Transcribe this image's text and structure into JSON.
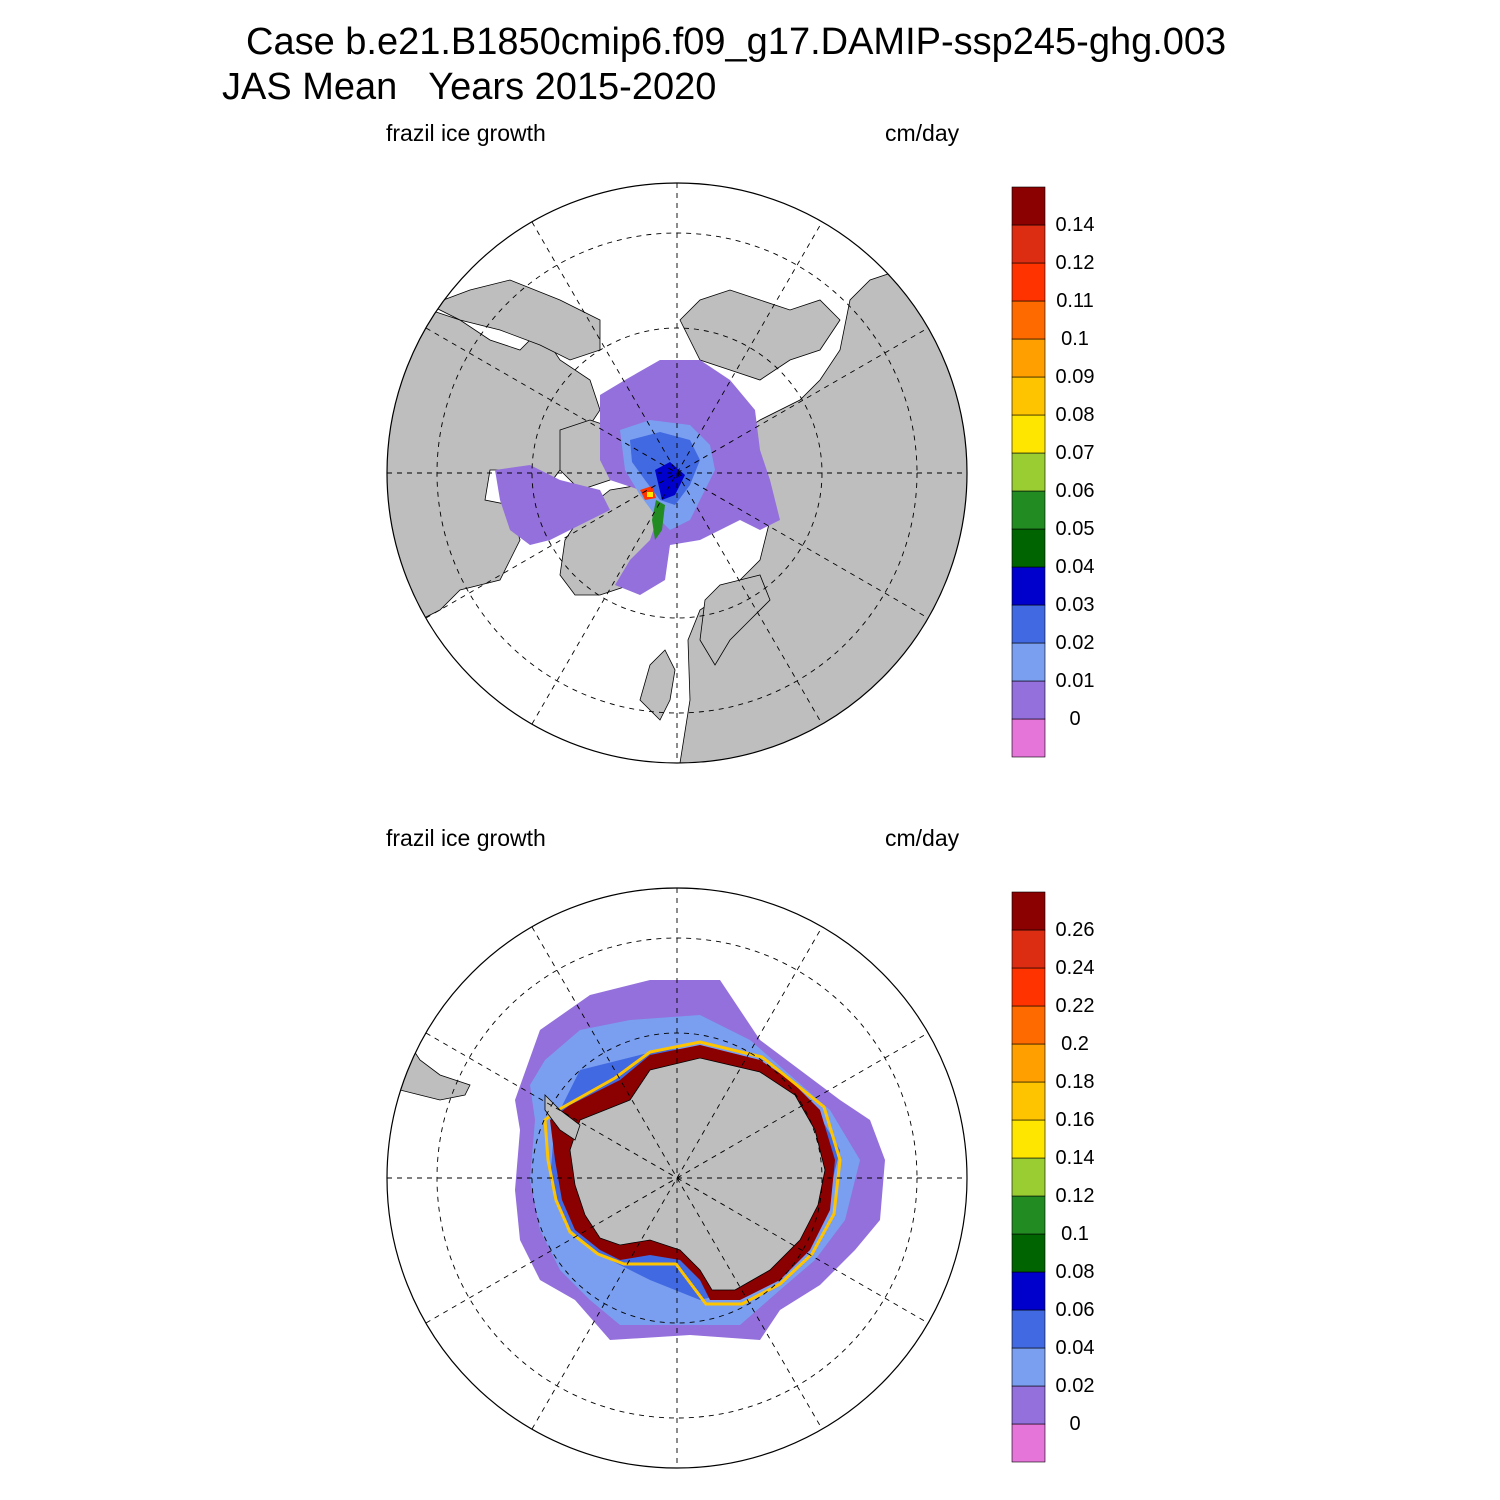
{
  "header": {
    "line1": "Case b.e21.B1850cmip6.f09_g17.DAMIP-ssp245-ghg.003",
    "line2": "JAS Mean   Years 2015-2020"
  },
  "colors": {
    "land": "#bebebe",
    "ocean_open": "#ffffff",
    "levels": [
      "#e575d9",
      "#9370db",
      "#7a9ff0",
      "#4169e1",
      "#0000cd",
      "#006400",
      "#228b22",
      "#9acd32",
      "#ffe600",
      "#ffc400",
      "#ffa000",
      "#ff6a00",
      "#ff3300",
      "#dc2c12",
      "#8b0000"
    ]
  },
  "panels": [
    {
      "hemisphere": "north",
      "variable_label": "frazil ice growth",
      "units_label": "cm/day",
      "colorbar_ticks": [
        "0",
        "0.01",
        "0.02",
        "0.03",
        "0.04",
        "0.05",
        "0.06",
        "0.07",
        "0.08",
        "0.09",
        "0.1",
        "0.11",
        "0.12",
        "0.14"
      ]
    },
    {
      "hemisphere": "south",
      "variable_label": "frazil ice growth",
      "units_label": "cm/day",
      "colorbar_ticks": [
        "0",
        "0.02",
        "0.04",
        "0.06",
        "0.08",
        "0.1",
        "0.12",
        "0.14",
        "0.16",
        "0.18",
        "0.2",
        "0.22",
        "0.24",
        "0.26"
      ]
    }
  ]
}
